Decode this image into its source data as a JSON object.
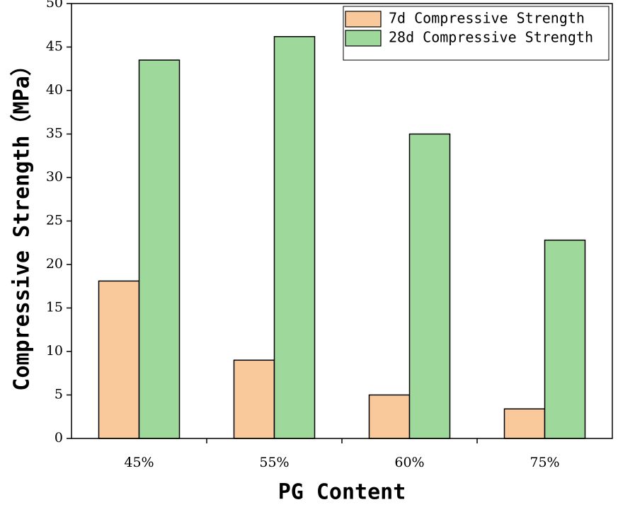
{
  "chart_data": {
    "type": "bar",
    "x_label": "PG Content",
    "y_label": "Compressive Strength（MPa）",
    "categories": [
      "45%",
      "55%",
      "60%",
      "75%"
    ],
    "series": [
      {
        "name": "7d Compressive Strength",
        "color": "#f9c89b",
        "values": [
          18.1,
          9.0,
          5.0,
          3.4
        ]
      },
      {
        "name": "28d Compressive Strength",
        "color": "#9ed89a",
        "values": [
          43.5,
          46.2,
          35.0,
          22.8
        ]
      }
    ],
    "ylim": [
      0,
      50
    ],
    "yticks": [
      0,
      5,
      10,
      15,
      20,
      25,
      30,
      35,
      40,
      45,
      50
    ],
    "legend": "upper-right"
  }
}
